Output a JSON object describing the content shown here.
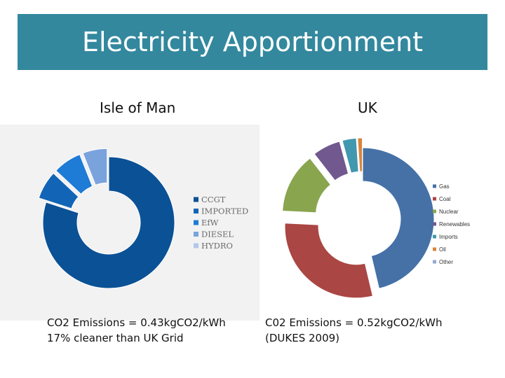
{
  "slide": {
    "title": "Electricity Apportionment",
    "left_heading": "Isle of Man",
    "right_heading": "UK",
    "left_caption": [
      "CO2 Emissions = 0.43kgCO2/kWh",
      "17% cleaner than UK Grid"
    ],
    "right_caption": [
      "C02 Emissions = 0.52kgCO2/kWh",
      "(DUKES 2009)"
    ]
  },
  "colors": {
    "title_bar": "#33889e"
  },
  "chart_data": [
    {
      "type": "pie",
      "style": "exploded doughnut",
      "categories": [
        "CCGT",
        "IMPORTED",
        "EfW",
        "DIESEL",
        "HYDRO"
      ],
      "values": [
        80,
        7,
        7,
        6,
        0
      ],
      "colors": [
        "#0b5196",
        "#1265b6",
        "#1e7bd6",
        "#7aa2dd",
        "#b0c8e8"
      ],
      "legend_position": "right"
    },
    {
      "type": "pie",
      "style": "exploded doughnut",
      "categories": [
        "Gas",
        "Coal",
        "Nuclear",
        "Renewables",
        "Imports",
        "Oil",
        "Other"
      ],
      "values": [
        44,
        28,
        13,
        6,
        3,
        1,
        0
      ],
      "colors": [
        "#4571a7",
        "#aa4643",
        "#89a54e",
        "#71588f",
        "#4198af",
        "#db843d",
        "#93a9cf"
      ],
      "legend_position": "right"
    }
  ]
}
